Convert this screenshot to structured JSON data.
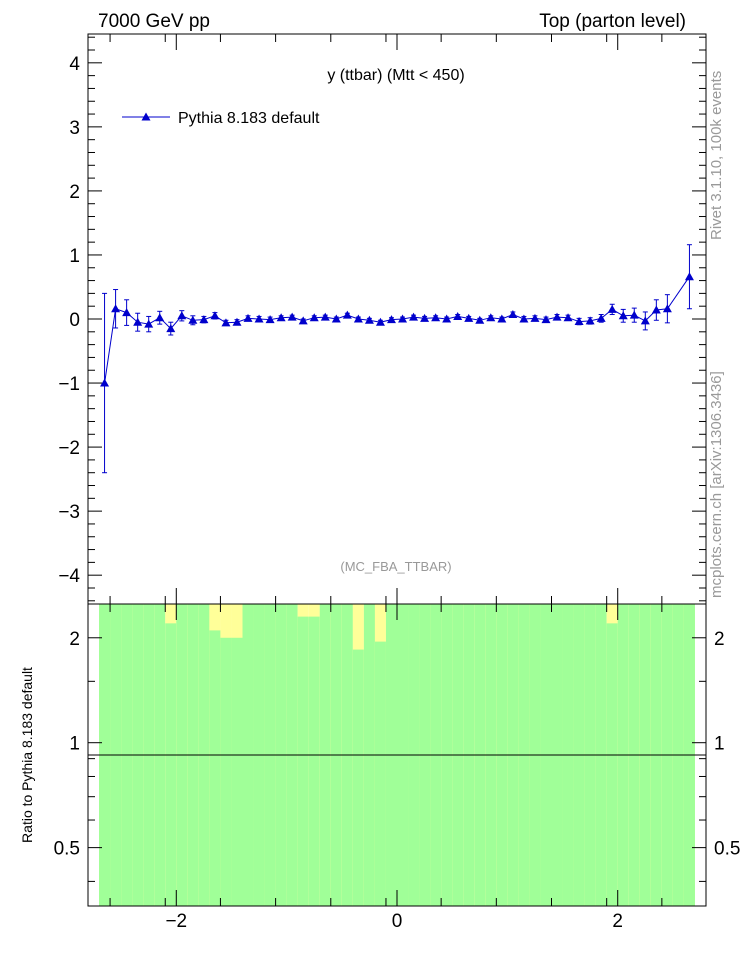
{
  "header": {
    "left": "7000 GeV pp",
    "right": "Top (parton level)"
  },
  "side_labels": {
    "rivet": "Rivet 3.1.10,  100k events",
    "source": "mcplots.cern.ch [arXiv:1306.3436]"
  },
  "colors": {
    "series": "#0000cc",
    "band_inner": "#a0ff98",
    "band_outer": "#ffff99"
  },
  "chart_data": [
    {
      "type": "line",
      "title": "y (ttbar) (Mtt < 450)",
      "analysis_label": "(MC_FBA_TTBAR)",
      "xlim": [
        -2.8,
        2.8
      ],
      "ylim": [
        -4.45,
        4.45
      ],
      "yticks": [
        -4,
        -3,
        -2,
        -1,
        0,
        1,
        2,
        3,
        4
      ],
      "xticks": [
        -2,
        0,
        2
      ],
      "legend": {
        "position": "top-left"
      },
      "series": [
        {
          "name": "Pythia 8.183 default",
          "marker": "triangle",
          "x": [
            -2.65,
            -2.55,
            -2.45,
            -2.35,
            -2.25,
            -2.15,
            -2.05,
            -1.95,
            -1.85,
            -1.75,
            -1.65,
            -1.55,
            -1.45,
            -1.35,
            -1.25,
            -1.15,
            -1.05,
            -0.95,
            -0.85,
            -0.75,
            -0.65,
            -0.55,
            -0.45,
            -0.35,
            -0.25,
            -0.15,
            -0.05,
            0.05,
            0.15,
            0.25,
            0.35,
            0.45,
            0.55,
            0.65,
            0.75,
            0.85,
            0.95,
            1.05,
            1.15,
            1.25,
            1.35,
            1.45,
            1.55,
            1.65,
            1.75,
            1.85,
            1.95,
            2.05,
            2.15,
            2.25,
            2.35,
            2.45,
            2.65
          ],
          "y": [
            -1.0,
            0.16,
            0.1,
            -0.05,
            -0.08,
            0.02,
            -0.15,
            0.05,
            -0.02,
            -0.01,
            0.05,
            -0.06,
            -0.05,
            0.01,
            0.0,
            -0.01,
            0.02,
            0.03,
            -0.03,
            0.02,
            0.03,
            0.0,
            0.06,
            0.0,
            -0.02,
            -0.05,
            -0.01,
            0.0,
            0.03,
            0.01,
            0.02,
            0.0,
            0.04,
            0.01,
            -0.02,
            0.02,
            0.0,
            0.07,
            0.0,
            0.01,
            -0.01,
            0.03,
            0.02,
            -0.04,
            -0.03,
            0.01,
            0.15,
            0.05,
            0.06,
            -0.03,
            0.14,
            0.16,
            0.66
          ],
          "yerr": [
            1.4,
            0.3,
            0.2,
            0.14,
            0.12,
            0.1,
            0.1,
            0.08,
            0.07,
            0.05,
            0.05,
            0.04,
            0.04,
            0.04,
            0.04,
            0.04,
            0.03,
            0.03,
            0.03,
            0.03,
            0.03,
            0.03,
            0.03,
            0.03,
            0.03,
            0.03,
            0.03,
            0.03,
            0.03,
            0.03,
            0.03,
            0.03,
            0.03,
            0.03,
            0.03,
            0.03,
            0.03,
            0.04,
            0.04,
            0.04,
            0.04,
            0.04,
            0.04,
            0.05,
            0.05,
            0.06,
            0.08,
            0.1,
            0.11,
            0.14,
            0.16,
            0.22,
            0.5
          ]
        }
      ]
    },
    {
      "type": "area",
      "ylabel": "Ratio to Pythia 8.183 default",
      "scale": "log",
      "xlim": [
        -2.8,
        2.8
      ],
      "ylim": [
        0.34,
        2.5
      ],
      "yticks": [
        0.5,
        1,
        2
      ],
      "reference_line": 1,
      "bin_width": 0.1,
      "bin_starts": [
        -2.7,
        -2.6,
        -2.5,
        -2.4,
        -2.3,
        -2.2,
        -2.1,
        -2.0,
        -1.9,
        -1.8,
        -1.7,
        -1.6,
        -1.5,
        -1.4,
        -1.3,
        -1.2,
        -1.1,
        -1.0,
        -0.9,
        -0.8,
        -0.7,
        -0.6,
        -0.5,
        -0.4,
        -0.3,
        -0.2,
        -0.1,
        0.0,
        0.1,
        0.2,
        0.3,
        0.4,
        0.5,
        0.6,
        0.7,
        0.8,
        0.9,
        1.0,
        1.1,
        1.2,
        1.3,
        1.4,
        1.5,
        1.6,
        1.7,
        1.8,
        1.9,
        2.0,
        2.1,
        2.2,
        2.3,
        2.4,
        2.5,
        2.6
      ],
      "inner_top": [
        2.5,
        2.5,
        2.5,
        2.5,
        2.5,
        2.5,
        2.2,
        2.5,
        2.5,
        2.5,
        2.1,
        2.0,
        2.0,
        2.5,
        2.5,
        2.5,
        2.5,
        2.5,
        2.3,
        2.3,
        2.5,
        2.5,
        2.5,
        1.85,
        2.5,
        1.95,
        2.5,
        2.5,
        2.5,
        2.5,
        2.5,
        2.5,
        2.5,
        2.5,
        2.5,
        2.5,
        2.5,
        2.5,
        2.5,
        2.5,
        2.5,
        2.5,
        2.5,
        2.5,
        2.5,
        2.5,
        2.2,
        2.5,
        2.5,
        2.5,
        2.5,
        2.5,
        2.5,
        2.5
      ],
      "outer_top": [
        2.5,
        2.5,
        2.5,
        2.5,
        2.5,
        2.45,
        2.5,
        2.5,
        2.5,
        2.5,
        2.5,
        2.5,
        2.5,
        2.5,
        2.5,
        2.5,
        2.5,
        2.5,
        2.5,
        2.5,
        2.5,
        2.5,
        2.5,
        2.5,
        2.5,
        2.5,
        2.5,
        2.5,
        2.5,
        2.5,
        2.5,
        2.5,
        2.5,
        2.5,
        2.5,
        2.5,
        2.5,
        2.5,
        2.5,
        2.5,
        2.5,
        2.5,
        2.5,
        2.5,
        2.5,
        2.5,
        2.5,
        2.5,
        2.5,
        2.5,
        2.5,
        2.5,
        2.5,
        2.5
      ]
    }
  ]
}
